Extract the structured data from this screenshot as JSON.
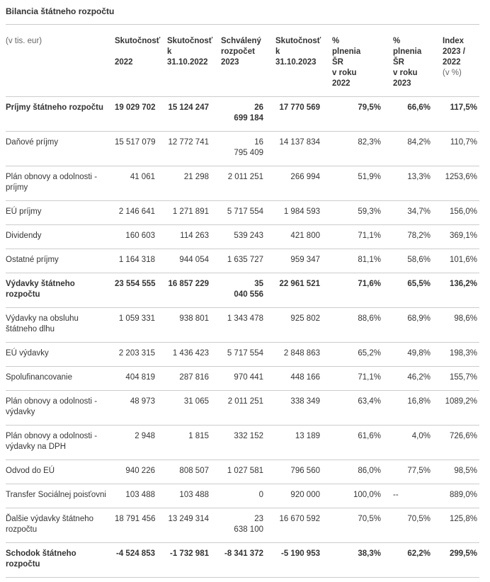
{
  "page_title": "Bilancia štátneho rozpočtu",
  "colors": {
    "text": "#363636",
    "strong_text": "#333333",
    "muted_text": "#666666",
    "divider": "#cccccc",
    "background": "#ffffff"
  },
  "chart_data": {
    "type": "table",
    "title": "Bilancia štátneho rozpočtu",
    "unit_label": "(v tis. eur)",
    "columns": [
      {
        "label": "Skutočnosť\n\n2022"
      },
      {
        "label": "Skutočnosť\nk\n31.10.2022"
      },
      {
        "label": "Schválený\nrozpočet\n2023"
      },
      {
        "label": "Skutočnosť\nk\n31.10.2023"
      },
      {
        "label": "%\nplnenia\nŠR\nv roku\n2022"
      },
      {
        "label": "%\nplnenia\nŠR\nv roku\n2023"
      },
      {
        "label": "Index\n2023 /\n2022",
        "sublabel": "(v %)"
      }
    ],
    "rows": [
      {
        "label": "Príjmy štátneho rozpočtu",
        "bold": true,
        "values": [
          "19 029 702",
          "15 124 247",
          "26\n699 184",
          "17 770 569",
          "79,5%",
          "66,6%",
          "117,5%"
        ]
      },
      {
        "label": "Daňové príjmy",
        "bold": false,
        "values": [
          "15 517 079",
          "12 772 741",
          "16\n795 409",
          "14 137 834",
          "82,3%",
          "84,2%",
          "110,7%"
        ]
      },
      {
        "label": "Plán obnovy a odolnosti -\npríjmy",
        "bold": false,
        "values": [
          "41 061",
          "21 298",
          "2 011 251",
          "266 994",
          "51,9%",
          "13,3%",
          "1253,6%"
        ]
      },
      {
        "label": "EÚ príjmy",
        "bold": false,
        "values": [
          "2 146 641",
          "1 271 891",
          "5 717 554",
          "1 984 593",
          "59,3%",
          "34,7%",
          "156,0%"
        ]
      },
      {
        "label": "Dividendy",
        "bold": false,
        "values": [
          "160 603",
          "114 263",
          "539 243",
          "421 800",
          "71,1%",
          "78,2%",
          "369,1%"
        ]
      },
      {
        "label": "Ostatné príjmy",
        "bold": false,
        "values": [
          "1 164 318",
          "944 054",
          "1 635 727",
          "959 347",
          "81,1%",
          "58,6%",
          "101,6%"
        ]
      },
      {
        "label": "Výdavky štátneho\nrozpočtu",
        "bold": true,
        "values": [
          "23 554 555",
          "16 857 229",
          "35\n040 556",
          "22 961 521",
          "71,6%",
          "65,5%",
          "136,2%"
        ]
      },
      {
        "label": "Výdavky na obsluhu\nštátneho dlhu",
        "bold": false,
        "values": [
          "1 059 331",
          "938 801",
          "1 343 478",
          "925 802",
          "88,6%",
          "68,9%",
          "98,6%"
        ]
      },
      {
        "label": "EÚ výdavky",
        "bold": false,
        "values": [
          "2 203 315",
          "1 436 423",
          "5 717 554",
          "2 848 863",
          "65,2%",
          "49,8%",
          "198,3%"
        ]
      },
      {
        "label": "Spolufinancovanie",
        "bold": false,
        "values": [
          "404 819",
          "287 816",
          "970 441",
          "448 166",
          "71,1%",
          "46,2%",
          "155,7%"
        ]
      },
      {
        "label": "Plán obnovy a odolnosti -\nvýdavky",
        "bold": false,
        "values": [
          "48 973",
          "31 065",
          "2 011 251",
          "338 349",
          "63,4%",
          "16,8%",
          "1089,2%"
        ]
      },
      {
        "label": "Plán obnovy a odolnosti -\nvýdavky na DPH",
        "bold": false,
        "values": [
          "2 948",
          "1 815",
          "332 152",
          "13 189",
          "61,6%",
          "4,0%",
          "726,6%"
        ]
      },
      {
        "label": "Odvod do EÚ",
        "bold": false,
        "values": [
          "940 226",
          "808 507",
          "1 027 581",
          "796 560",
          "86,0%",
          "77,5%",
          "98,5%"
        ]
      },
      {
        "label": "Transfer Sociálnej poisťovni",
        "bold": false,
        "values": [
          "103 488",
          "103 488",
          "0",
          "920 000",
          "100,0%",
          "--",
          "889,0%"
        ]
      },
      {
        "label": "Ďalšie výdavky štátneho\nrozpočtu",
        "bold": false,
        "values": [
          "18 791 456",
          "13 249 314",
          "23\n638 100",
          "16 670 592",
          "70,5%",
          "70,5%",
          "125,8%"
        ]
      },
      {
        "label": "Schodok štátneho\nrozpočtu",
        "bold": true,
        "values": [
          "-4 524 853",
          "-1 732 981",
          "-8 341 372",
          "-5 190 953",
          "38,3%",
          "62,2%",
          "299,5%"
        ]
      }
    ]
  }
}
